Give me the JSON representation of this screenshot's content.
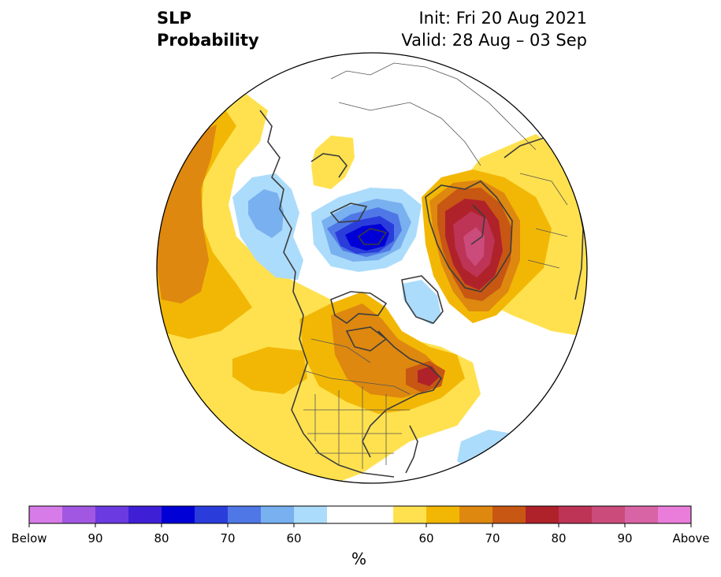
{
  "header": {
    "variable": "SLP",
    "product": "Probability",
    "init": "Init: Fri 20 Aug 2021",
    "valid": "Valid: 28 Aug – 03 Sep"
  },
  "colorbar": {
    "colors": [
      "#d77be8",
      "#a157e1",
      "#6b3ae0",
      "#3f1fd6",
      "#0000d6",
      "#2a3ddb",
      "#4f77e6",
      "#78b0f0",
      "#acdcfb",
      "#ffffff",
      "#ffffff",
      "#ffe14f",
      "#f2b705",
      "#de8810",
      "#c75713",
      "#b0222a",
      "#bd3456",
      "#cb4b7b",
      "#d864a5",
      "#e97dd9"
    ],
    "labels": [
      "Below",
      "90",
      "80",
      "70",
      "60",
      "60",
      "70",
      "80",
      "90",
      "Above"
    ],
    "unit": "%"
  },
  "colors": {
    "outline": "#000000",
    "coastline": "#3c3c3c",
    "border": "#555555"
  }
}
